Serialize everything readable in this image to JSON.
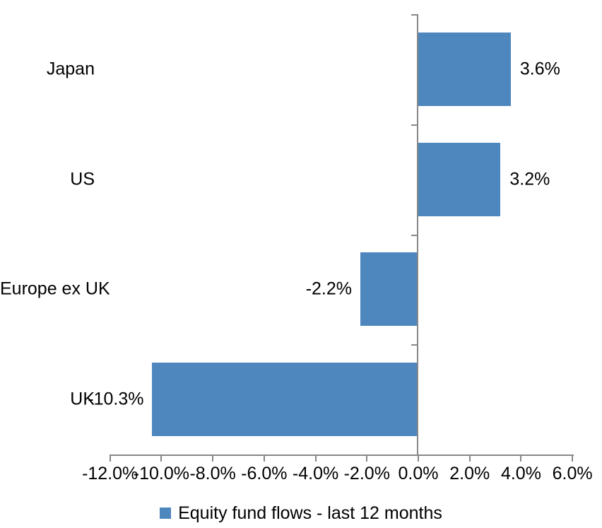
{
  "chart_data": {
    "type": "bar",
    "orientation": "horizontal",
    "title": "",
    "categories": [
      "Japan",
      "US",
      "Europe ex UK",
      "UK"
    ],
    "series": [
      {
        "name": "Equity fund flows - last 12 months",
        "values": [
          3.6,
          3.2,
          -2.2,
          -10.3
        ]
      }
    ],
    "data_labels": [
      "3.6%",
      "3.2%",
      "-2.2%",
      "-10.3%"
    ],
    "x_axis": {
      "min": -12,
      "max": 6,
      "tick_step": 2,
      "ticks": [
        -12,
        -10,
        -8,
        -6,
        -4,
        -2,
        0,
        2,
        4,
        6
      ],
      "tick_labels": [
        "-12.0%",
        "-10.0%",
        "-8.0%",
        "-6.0%",
        "-4.0%",
        "-2.0%",
        "0.0%",
        "2.0%",
        "4.0%",
        "6.0%"
      ]
    },
    "grid": false,
    "legend": {
      "position": "bottom",
      "items": [
        {
          "label": "Equity fund flows - last 12 months",
          "color": "#4E87BE"
        }
      ]
    },
    "colors": {
      "bar": "#4E87BE",
      "axis": "#878787",
      "text": "#000000",
      "background": "#FFFFFF"
    }
  }
}
